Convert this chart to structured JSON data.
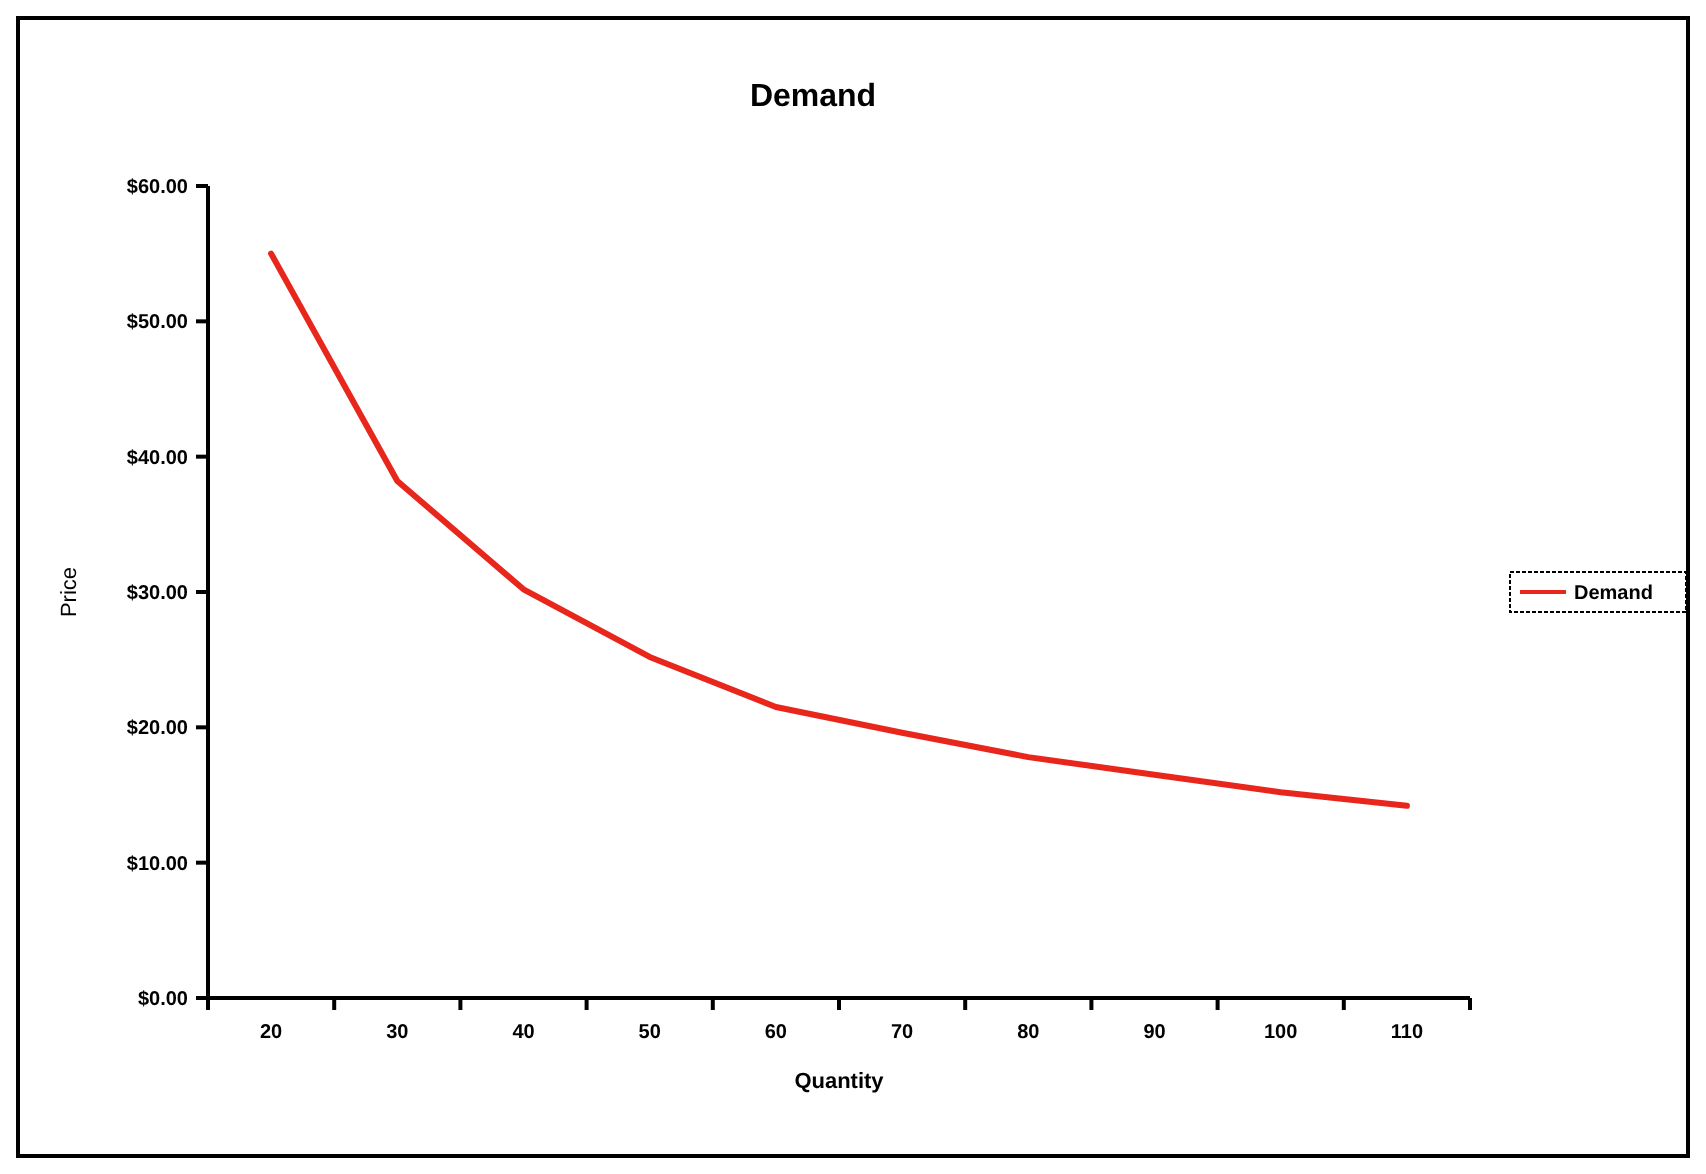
{
  "chart_data": {
    "type": "line",
    "title": "Demand",
    "xlabel": "Quantity",
    "ylabel": "Price",
    "categories": [
      "20",
      "30",
      "40",
      "50",
      "60",
      "70",
      "80",
      "90",
      "100",
      "110"
    ],
    "series": [
      {
        "name": "Demand",
        "color": "#e8261c",
        "values": [
          55,
          38.2,
          30.2,
          25.2,
          21.5,
          19.6,
          17.8,
          16.5,
          15.2,
          14.2
        ]
      }
    ],
    "ylim": [
      0,
      60
    ],
    "yticks": [
      {
        "value": 0,
        "label": "$0.00"
      },
      {
        "value": 10,
        "label": "$10.00"
      },
      {
        "value": 20,
        "label": "$20.00"
      },
      {
        "value": 30,
        "label": "$30.00"
      },
      {
        "value": 40,
        "label": "$40.00"
      },
      {
        "value": 50,
        "label": "$50.00"
      },
      {
        "value": 60,
        "label": "$60.00"
      }
    ],
    "grid": false,
    "legend": "right",
    "marker": "none",
    "line_style": "solid"
  }
}
